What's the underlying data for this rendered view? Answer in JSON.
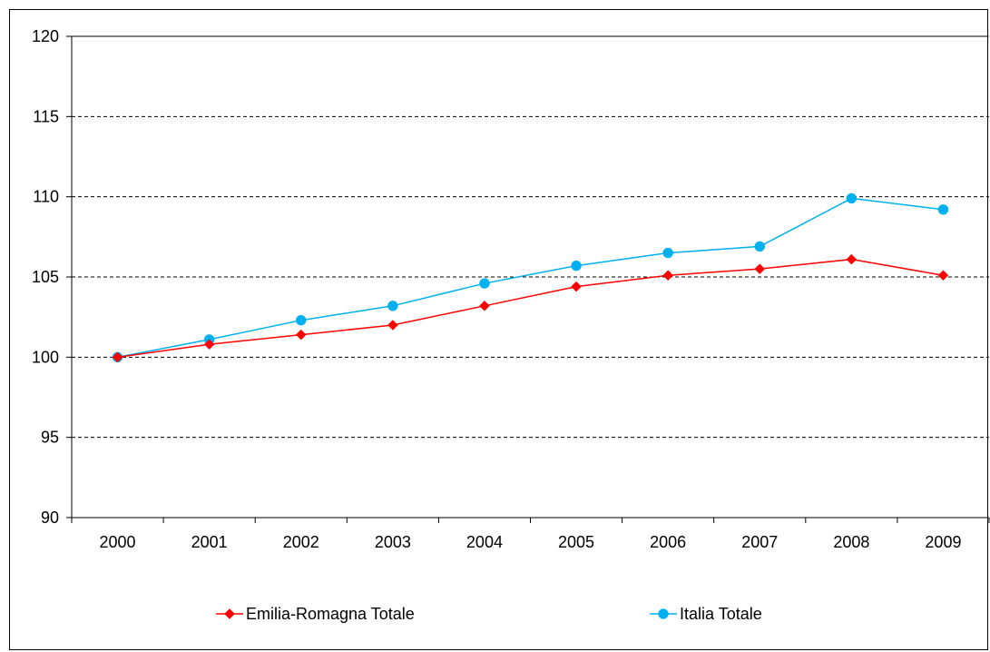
{
  "chart_data": {
    "type": "line",
    "categories": [
      "2000",
      "2001",
      "2002",
      "2003",
      "2004",
      "2005",
      "2006",
      "2007",
      "2008",
      "2009"
    ],
    "ylim": [
      90,
      120
    ],
    "yticks": [
      "90",
      "95",
      "100",
      "105",
      "110",
      "115",
      "120"
    ],
    "grid": "horizontal dashed",
    "legend_placement": "bottom",
    "series": [
      {
        "name": "Emilia-Romagna Totale",
        "color": "#ff0000",
        "marker": "diamond",
        "values": [
          100.0,
          100.8,
          101.4,
          102.0,
          103.2,
          104.4,
          105.1,
          105.5,
          106.1,
          105.1
        ]
      },
      {
        "name": "Italia Totale",
        "color": "#00b0f0",
        "marker": "circle",
        "values": [
          100.0,
          101.1,
          102.3,
          103.2,
          104.6,
          105.7,
          106.5,
          106.9,
          109.9,
          109.2
        ]
      }
    ]
  }
}
